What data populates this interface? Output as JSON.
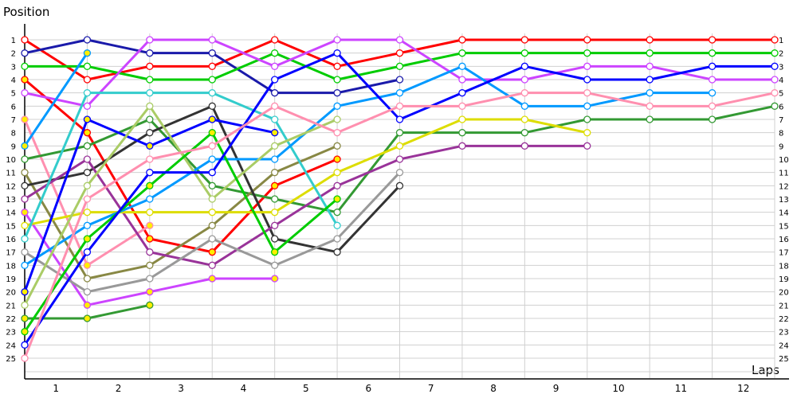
{
  "chart_data": {
    "type": "line",
    "ylabel": "Position",
    "xlabel": "Laps",
    "x_tick_labels": [
      "1",
      "2",
      "3",
      "4",
      "5",
      "6",
      "7",
      "8",
      "9",
      "10",
      "11",
      "12"
    ],
    "y_tick_labels": [
      "1",
      "2",
      "3",
      "4",
      "5",
      "6",
      "7",
      "8",
      "9",
      "10",
      "11",
      "12",
      "13",
      "14",
      "15",
      "16",
      "17",
      "18",
      "19",
      "20",
      "21",
      "22",
      "23",
      "24",
      "25"
    ],
    "ylim": [
      1,
      25
    ],
    "y_inverted": true,
    "laps": 12,
    "grid": true,
    "series": [
      {
        "color": "#ff0000",
        "marker_fill": "#ffffff",
        "values": [
          1,
          4,
          3,
          3,
          1,
          3,
          2,
          1,
          1,
          1,
          1,
          1,
          1
        ]
      },
      {
        "color": "#1a1aaa",
        "marker_fill": "#ffffff",
        "values": [
          2,
          1,
          2,
          2,
          5,
          5,
          4
        ]
      },
      {
        "color": "#00cc00",
        "marker_fill": "#ffffff",
        "values": [
          3,
          3,
          4,
          4,
          2,
          4,
          3,
          2,
          2,
          2,
          2,
          2,
          2
        ]
      },
      {
        "color": "#ff0000",
        "marker_fill": "#ffee00",
        "values": [
          4,
          8,
          16,
          17,
          12,
          10
        ]
      },
      {
        "color": "#cc44ff",
        "marker_fill": "#ffffff",
        "values": [
          5,
          6,
          1,
          1,
          3,
          1,
          1,
          4,
          4,
          3,
          3,
          4,
          4
        ]
      },
      {
        "color": "#ff8faf",
        "marker_fill": "#ffee00",
        "values": [
          7,
          18,
          15
        ]
      },
      {
        "color": "#0099ff",
        "marker_fill": "#ffee00",
        "values": [
          9,
          2
        ]
      },
      {
        "color": "#339933",
        "marker_fill": "#ffffff",
        "values": [
          10,
          9,
          7,
          12,
          13,
          14,
          8,
          8,
          8,
          7,
          7,
          7,
          6
        ]
      },
      {
        "color": "#888844",
        "marker_fill": "#ffffff",
        "values": [
          11,
          19,
          18,
          15,
          11,
          9
        ]
      },
      {
        "color": "#333333",
        "marker_fill": "#ffffff",
        "values": [
          12,
          11,
          8,
          6,
          16,
          17,
          12
        ]
      },
      {
        "color": "#993399",
        "marker_fill": "#ffffff",
        "values": [
          13,
          10,
          17,
          18,
          15,
          12,
          10,
          9,
          9,
          9
        ]
      },
      {
        "color": "#cc44ff",
        "marker_fill": "#ffee00",
        "values": [
          14,
          21,
          20,
          19,
          19
        ]
      },
      {
        "color": "#dddd00",
        "marker_fill": "#ffffff",
        "values": [
          15,
          14,
          14,
          14,
          14,
          11,
          9,
          7,
          7,
          8
        ]
      },
      {
        "color": "#33cccc",
        "marker_fill": "#ffffff",
        "values": [
          16,
          5,
          5,
          5,
          7,
          15
        ]
      },
      {
        "color": "#999999",
        "marker_fill": "#ffffff",
        "values": [
          17,
          20,
          19,
          16,
          18,
          16,
          11
        ]
      },
      {
        "color": "#0099ff",
        "marker_fill": "#ffffff",
        "values": [
          18,
          15,
          13,
          10,
          10,
          6,
          5,
          3,
          6,
          6,
          5,
          5
        ]
      },
      {
        "color": "#0000ff",
        "marker_fill": "#ffee00",
        "values": [
          20,
          7,
          9,
          7,
          8
        ]
      },
      {
        "color": "#aacc66",
        "marker_fill": "#ffffff",
        "values": [
          21,
          12,
          6,
          13,
          9,
          7
        ]
      },
      {
        "color": "#339933",
        "marker_fill": "#ffee00",
        "values": [
          22,
          22,
          21
        ]
      },
      {
        "color": "#00cc00",
        "marker_fill": "#ffee00",
        "values": [
          23,
          16,
          12,
          8,
          17,
          13
        ]
      },
      {
        "color": "#0000ff",
        "marker_fill": "#ffffff",
        "values": [
          24,
          17,
          11,
          11,
          4,
          2,
          7,
          5,
          3,
          4,
          4,
          3,
          3
        ]
      },
      {
        "color": "#ff8faf",
        "marker_fill": "#ffffff",
        "values": [
          25,
          13,
          10,
          9,
          6,
          8,
          6,
          6,
          5,
          5,
          6,
          6,
          5
        ]
      }
    ]
  }
}
